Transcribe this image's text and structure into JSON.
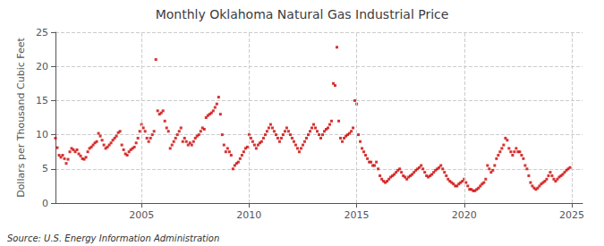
{
  "chart_data": {
    "type": "scatter",
    "title": "Monthly Oklahoma Natural Gas Industrial Price",
    "ylabel": "Dollars per Thousand Cubic Feet",
    "annotations": [
      "Source: U.S. Energy Information Administration"
    ],
    "color": "#cc0000",
    "marker": "square",
    "grid": true,
    "xlim": [
      2001.0,
      2025.5
    ],
    "xticks": [
      2005,
      2010,
      2015,
      2020,
      2025
    ],
    "ylim": [
      0,
      25
    ],
    "yticks": [
      0,
      5,
      10,
      15,
      20,
      25
    ],
    "x": [
      2001.0,
      2001.083,
      2001.167,
      2001.25,
      2001.333,
      2001.417,
      2001.5,
      2001.583,
      2001.667,
      2001.75,
      2001.833,
      2001.917,
      2002.0,
      2002.083,
      2002.167,
      2002.25,
      2002.333,
      2002.417,
      2002.5,
      2002.583,
      2002.667,
      2002.75,
      2002.833,
      2002.917,
      2003.0,
      2003.083,
      2003.167,
      2003.25,
      2003.333,
      2003.417,
      2003.5,
      2003.583,
      2003.667,
      2003.75,
      2003.833,
      2003.917,
      2004.0,
      2004.083,
      2004.167,
      2004.25,
      2004.333,
      2004.417,
      2004.5,
      2004.583,
      2004.667,
      2004.75,
      2004.833,
      2004.917,
      2005.0,
      2005.083,
      2005.167,
      2005.25,
      2005.333,
      2005.417,
      2005.5,
      2005.583,
      2005.667,
      2005.75,
      2005.833,
      2005.917,
      2006.0,
      2006.083,
      2006.167,
      2006.25,
      2006.333,
      2006.417,
      2006.5,
      2006.583,
      2006.667,
      2006.75,
      2006.833,
      2006.917,
      2007.0,
      2007.083,
      2007.167,
      2007.25,
      2007.333,
      2007.417,
      2007.5,
      2007.583,
      2007.667,
      2007.75,
      2007.833,
      2007.917,
      2008.0,
      2008.083,
      2008.167,
      2008.25,
      2008.333,
      2008.417,
      2008.5,
      2008.583,
      2008.667,
      2008.75,
      2008.833,
      2008.917,
      2009.0,
      2009.083,
      2009.167,
      2009.25,
      2009.333,
      2009.417,
      2009.5,
      2009.583,
      2009.667,
      2009.75,
      2009.833,
      2009.917,
      2010.0,
      2010.083,
      2010.167,
      2010.25,
      2010.333,
      2010.417,
      2010.5,
      2010.583,
      2010.667,
      2010.75,
      2010.833,
      2010.917,
      2011.0,
      2011.083,
      2011.167,
      2011.25,
      2011.333,
      2011.417,
      2011.5,
      2011.583,
      2011.667,
      2011.75,
      2011.833,
      2011.917,
      2012.0,
      2012.083,
      2012.167,
      2012.25,
      2012.333,
      2012.417,
      2012.5,
      2012.583,
      2012.667,
      2012.75,
      2012.833,
      2012.917,
      2013.0,
      2013.083,
      2013.167,
      2013.25,
      2013.333,
      2013.417,
      2013.5,
      2013.583,
      2013.667,
      2013.75,
      2013.833,
      2013.917,
      2014.0,
      2014.083,
      2014.167,
      2014.25,
      2014.333,
      2014.417,
      2014.5,
      2014.583,
      2014.667,
      2014.75,
      2014.833,
      2014.917,
      2015.0,
      2015.083,
      2015.167,
      2015.25,
      2015.333,
      2015.417,
      2015.5,
      2015.583,
      2015.667,
      2015.75,
      2015.833,
      2015.917,
      2016.0,
      2016.083,
      2016.167,
      2016.25,
      2016.333,
      2016.417,
      2016.5,
      2016.583,
      2016.667,
      2016.75,
      2016.833,
      2016.917,
      2017.0,
      2017.083,
      2017.167,
      2017.25,
      2017.333,
      2017.417,
      2017.5,
      2017.583,
      2017.667,
      2017.75,
      2017.833,
      2017.917,
      2018.0,
      2018.083,
      2018.167,
      2018.25,
      2018.333,
      2018.417,
      2018.5,
      2018.583,
      2018.667,
      2018.75,
      2018.833,
      2018.917,
      2019.0,
      2019.083,
      2019.167,
      2019.25,
      2019.333,
      2019.417,
      2019.5,
      2019.583,
      2019.667,
      2019.75,
      2019.833,
      2019.917,
      2020.0,
      2020.083,
      2020.167,
      2020.25,
      2020.333,
      2020.417,
      2020.5,
      2020.583,
      2020.667,
      2020.75,
      2020.833,
      2020.917,
      2021.0,
      2021.083,
      2021.167,
      2021.25,
      2021.333,
      2021.417,
      2021.5,
      2021.583,
      2021.667,
      2021.75,
      2021.833,
      2021.917,
      2022.0,
      2022.083,
      2022.167,
      2022.25,
      2022.333,
      2022.417,
      2022.5,
      2022.583,
      2022.667,
      2022.75,
      2022.833,
      2022.917,
      2023.0,
      2023.083,
      2023.167,
      2023.25,
      2023.333,
      2023.417,
      2023.5,
      2023.583,
      2023.667,
      2023.75,
      2023.833,
      2023.917,
      2024.0,
      2024.083,
      2024.167,
      2024.25,
      2024.333,
      2024.417,
      2024.5,
      2024.583,
      2024.667,
      2024.75,
      2024.833,
      2024.917
    ],
    "values": [
      9.5,
      8.1,
      7.0,
      6.7,
      7.0,
      6.5,
      5.8,
      6.4,
      7.5,
      8.0,
      7.8,
      7.5,
      7.8,
      7.2,
      6.9,
      6.5,
      6.4,
      6.7,
      7.5,
      8.0,
      8.2,
      8.5,
      8.8,
      9.0,
      10.2,
      9.8,
      9.2,
      8.5,
      8.0,
      8.2,
      8.5,
      8.8,
      9.2,
      9.5,
      9.8,
      10.3,
      10.5,
      8.5,
      7.8,
      7.2,
      7.0,
      7.5,
      7.8,
      8.0,
      8.2,
      8.8,
      9.5,
      10.5,
      11.5,
      11.0,
      10.5,
      9.5,
      9.0,
      9.5,
      10.0,
      10.5,
      21.0,
      13.5,
      13.0,
      13.2,
      13.5,
      12.0,
      11.0,
      10.5,
      8.0,
      8.5,
      9.0,
      9.5,
      10.0,
      10.5,
      11.0,
      9.0,
      9.5,
      9.0,
      8.5,
      8.8,
      8.5,
      9.0,
      9.5,
      9.8,
      10.0,
      10.5,
      11.0,
      10.8,
      12.5,
      12.8,
      13.0,
      13.2,
      13.5,
      14.0,
      14.5,
      15.5,
      13.0,
      10.0,
      8.5,
      7.5,
      8.0,
      7.5,
      7.0,
      5.0,
      5.5,
      5.8,
      6.0,
      6.5,
      7.0,
      7.5,
      8.0,
      8.2,
      10.0,
      9.5,
      9.0,
      8.5,
      8.0,
      8.5,
      8.8,
      9.0,
      9.5,
      10.0,
      10.5,
      11.0,
      11.5,
      11.0,
      10.5,
      10.0,
      9.5,
      9.0,
      9.5,
      10.0,
      10.5,
      11.0,
      10.5,
      10.0,
      9.5,
      9.0,
      8.5,
      8.0,
      7.5,
      8.0,
      8.5,
      9.0,
      9.5,
      10.0,
      10.5,
      11.0,
      11.5,
      11.0,
      10.5,
      10.0,
      9.5,
      10.0,
      10.5,
      10.8,
      11.0,
      11.5,
      12.0,
      17.5,
      17.2,
      22.8,
      12.0,
      9.5,
      9.0,
      9.5,
      9.8,
      10.0,
      10.2,
      10.5,
      11.0,
      15.0,
      14.5,
      10.0,
      9.0,
      8.0,
      7.5,
      7.0,
      6.5,
      6.0,
      6.0,
      5.5,
      5.5,
      6.0,
      5.0,
      4.0,
      3.5,
      3.2,
      3.0,
      3.2,
      3.5,
      3.8,
      4.0,
      4.2,
      4.5,
      4.8,
      5.0,
      4.5,
      4.0,
      3.8,
      3.5,
      3.8,
      4.0,
      4.2,
      4.5,
      4.8,
      5.0,
      5.2,
      5.5,
      5.0,
      4.5,
      4.0,
      3.8,
      4.0,
      4.2,
      4.5,
      4.8,
      5.0,
      5.2,
      5.5,
      5.0,
      4.5,
      4.0,
      3.5,
      3.2,
      3.0,
      2.8,
      2.5,
      2.5,
      2.8,
      3.0,
      3.2,
      3.5,
      3.0,
      2.5,
      2.0,
      2.0,
      1.8,
      1.8,
      2.0,
      2.2,
      2.5,
      2.8,
      3.0,
      3.5,
      5.5,
      5.0,
      4.5,
      4.8,
      5.5,
      6.5,
      7.0,
      7.5,
      8.0,
      8.5,
      9.5,
      9.2,
      8.0,
      7.5,
      7.0,
      7.5,
      8.0,
      7.5,
      7.5,
      7.0,
      6.5,
      5.5,
      5.0,
      4.0,
      3.0,
      2.5,
      2.2,
      2.0,
      2.2,
      2.5,
      2.8,
      3.0,
      3.2,
      3.5,
      4.0,
      4.5,
      4.0,
      3.5,
      3.2,
      3.5,
      3.8,
      4.0,
      4.2,
      4.5,
      4.8,
      5.0,
      5.2
    ]
  }
}
